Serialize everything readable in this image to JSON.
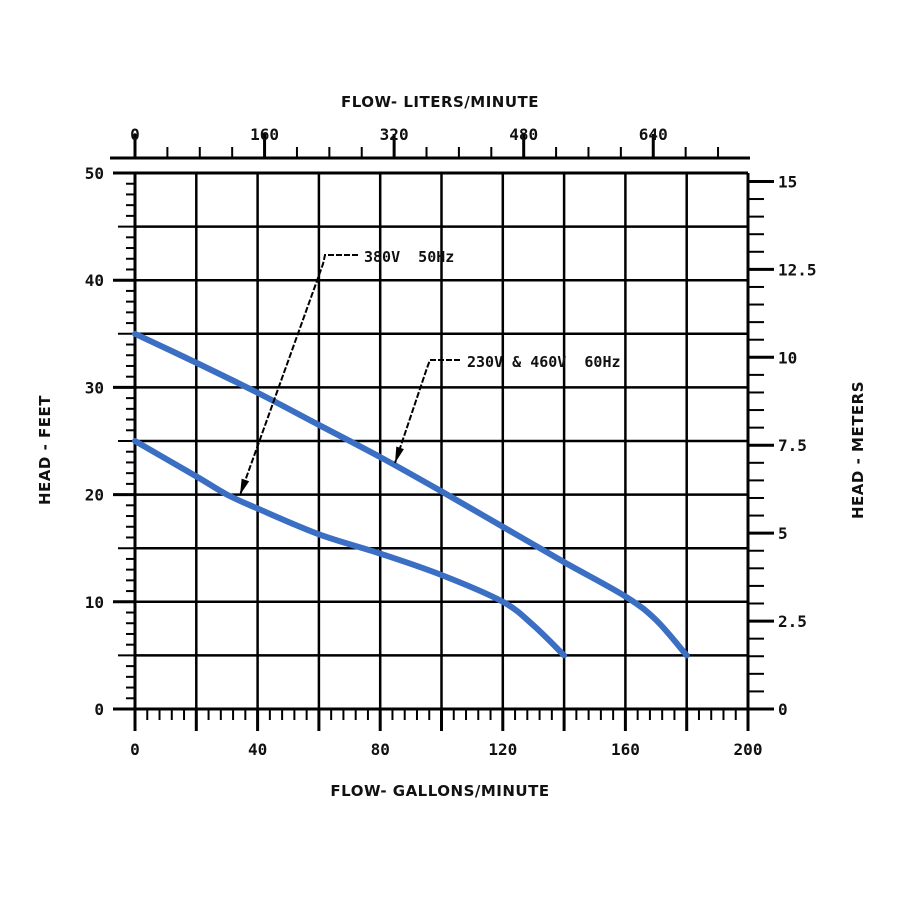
{
  "chart_data": {
    "type": "line",
    "title": "",
    "xlabel": "FLOW- GALLONS/MINUTE",
    "x2label": "FLOW- LITERS/MINUTE",
    "ylabel": "HEAD - FEET",
    "y2label": "HEAD - METERS",
    "xlim": [
      0,
      200
    ],
    "ylim": [
      0,
      50
    ],
    "x_ticks": [
      "0",
      "40",
      "80",
      "120",
      "160",
      "200"
    ],
    "x2_ticks": [
      "0",
      "160",
      "320",
      "480",
      "640"
    ],
    "y_ticks": [
      "0",
      "10",
      "20",
      "30",
      "40",
      "50"
    ],
    "y2_ticks": [
      "0",
      "2.5",
      "5",
      "7.5",
      "10",
      "12.5",
      "15"
    ],
    "grid": true,
    "series": [
      {
        "name": "230V & 460V 60Hz",
        "color": "#3a6fc4",
        "x": [
          0,
          20,
          40,
          60,
          80,
          100,
          120,
          140,
          160,
          170,
          180
        ],
        "y": [
          35,
          32.3,
          29.5,
          26.5,
          23.5,
          20.3,
          17,
          13.7,
          10.5,
          8.3,
          5
        ]
      },
      {
        "name": "380V 50Hz",
        "color": "#3a6fc4",
        "x": [
          0,
          20,
          30,
          40,
          60,
          80,
          100,
          120,
          130,
          140
        ],
        "y": [
          25,
          21.7,
          20,
          18.7,
          16.3,
          14.5,
          12.5,
          10,
          7.8,
          5
        ]
      }
    ],
    "annotations": [
      {
        "text": "380V  50Hz",
        "points_to": [
          32,
          20
        ]
      },
      {
        "text": "230V & 460V  60Hz",
        "points_to": [
          85,
          22.8
        ]
      }
    ]
  },
  "labels": {
    "top_axis_title": "FLOW- LITERS/MINUTE",
    "bottom_axis_title": "FLOW- GALLONS/MINUTE",
    "left_axis_title": "HEAD - FEET",
    "right_axis_title": "HEAD - METERS",
    "annotation_50hz": "380V  50Hz",
    "annotation_60hz": "230V & 460V  60Hz"
  }
}
